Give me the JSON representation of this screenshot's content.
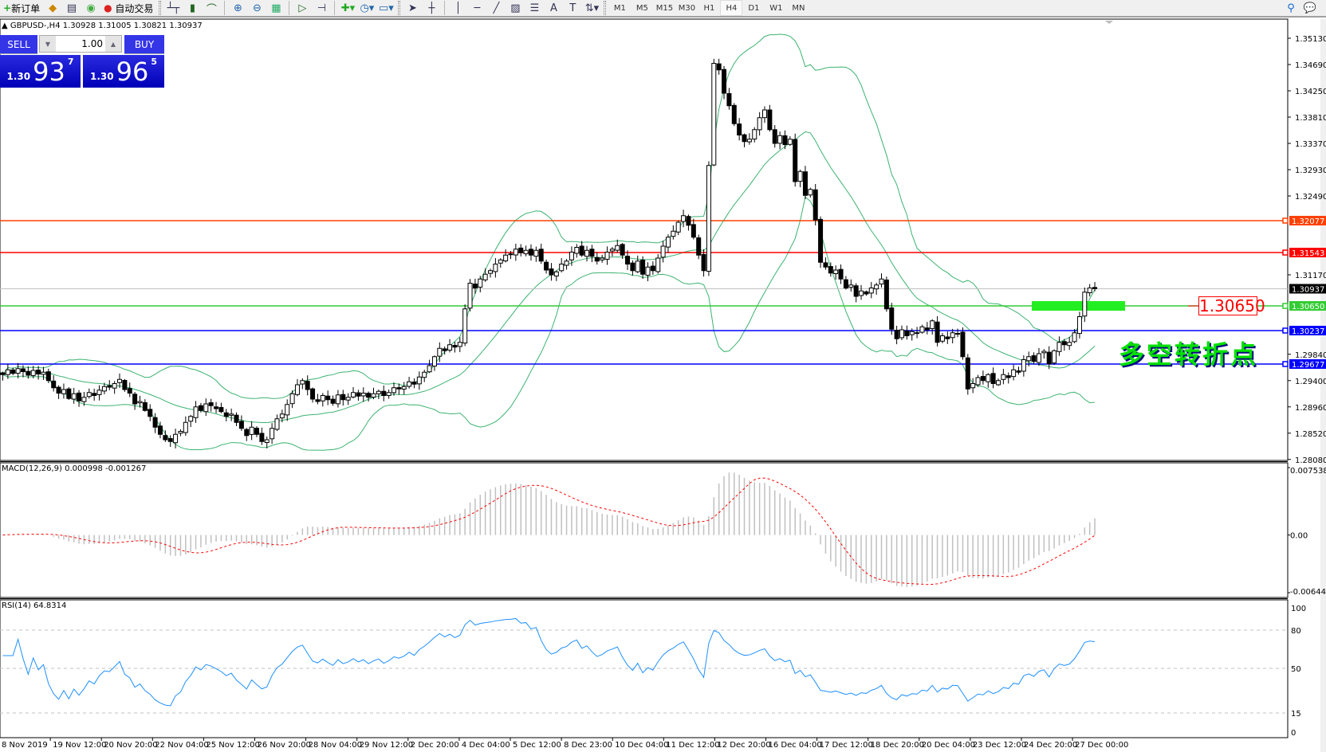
{
  "toolbar": {
    "new_order": "新订单",
    "auto_trading": "自动交易",
    "timeframes": [
      "M1",
      "M5",
      "M15",
      "M30",
      "H1",
      "H4",
      "D1",
      "W1",
      "MN"
    ],
    "active_timeframe": "H4",
    "icons": [
      "market-watch-icon",
      "navigator-icon",
      "signals-icon",
      "bar-chart-icon",
      "candlestick-icon",
      "line-chart-icon",
      "zoom-in-icon",
      "zoom-out-icon",
      "tile-windows-icon",
      "autoscroll-icon",
      "chart-shift-icon",
      "indicators-icon",
      "periods-icon",
      "templates-icon",
      "cursor-icon",
      "crosshair-icon",
      "vertical-line-icon",
      "horizontal-line-icon",
      "trendline-icon",
      "fibonacci-fan-icon",
      "fibonacci-icon",
      "text-icon",
      "text-label-icon",
      "arrows-icon",
      "search-icon",
      "chat-icon"
    ]
  },
  "chart": {
    "title": "GBPUSD-,H4  1.30928 1.31005 1.30821 1.30937",
    "annotation_text": "多空转折点",
    "level_label": "1.30650"
  },
  "trade_panel": {
    "sell_label": "SELL",
    "buy_label": "BUY",
    "lot": "1.00",
    "sell_price": {
      "small": "1.30",
      "big": "93",
      "pip": "7"
    },
    "buy_price": {
      "small": "1.30",
      "big": "96",
      "pip": "5"
    }
  },
  "indicators": {
    "macd_label": "MACD(12,26,9) 0.000998 -0.001267",
    "rsi_label": "RSI(14) 64.8314"
  },
  "colors": {
    "bull": "#ffffff",
    "bear": "#000000",
    "bands": "#3cb371",
    "macd_hist": "#c0c0c0",
    "macd_signal": "#ff0000",
    "rsi": "#1e90ff"
  },
  "chart_data": {
    "type": "candlestick",
    "symbol": "GBPUSD-",
    "timeframe": "H4",
    "ylim": [
      1.2808,
      1.3535
    ],
    "price_ticks": [
      "1.35130",
      "1.34690",
      "1.34250",
      "1.33810",
      "1.33370",
      "1.32930",
      "1.32490",
      "1.31170",
      "1.29840",
      "1.29400",
      "1.28960",
      "1.28520",
      "1.28080"
    ],
    "time_ticks": [
      "8 Nov 2019",
      "19 Nov 12:00",
      "20 Nov 20:00",
      "22 Nov 04:00",
      "25 Nov 12:00",
      "26 Nov 20:00",
      "28 Nov 04:00",
      "29 Nov 12:00",
      "2 Dec 20:00",
      "4 Dec 04:00",
      "5 Dec 12:00",
      "8 Dec 23:00",
      "10 Dec 04:00",
      "11 Dec 12:00",
      "12 Dec 20:00",
      "16 Dec 04:00",
      "17 Dec 12:00",
      "18 Dec 20:00",
      "20 Dec 04:00",
      "23 Dec 12:00",
      "24 Dec 20:00",
      "27 Dec 00:00"
    ],
    "horizontal_levels": [
      {
        "price": "1.32077",
        "color": "#ff4000"
      },
      {
        "price": "1.31543",
        "color": "#ff0000"
      },
      {
        "price": "1.30937",
        "color": "#000000",
        "line": "#c0c0c0"
      },
      {
        "price": "1.30650",
        "color": "#33cc33"
      },
      {
        "price": "1.30237",
        "color": "#0000ff"
      },
      {
        "price": "1.29677",
        "color": "#0000ff"
      }
    ],
    "highlight_zone_price": 1.3065,
    "closes": [
      1.295,
      1.2958,
      1.2952,
      1.296,
      1.2955,
      1.2949,
      1.2957,
      1.2951,
      1.2954,
      1.294,
      1.2928,
      1.2919,
      1.2925,
      1.291,
      1.2918,
      1.2906,
      1.2912,
      1.292,
      1.2915,
      1.2924,
      1.293,
      1.2929,
      1.2935,
      1.2942,
      1.2925,
      1.2919,
      1.2901,
      1.2905,
      1.289,
      1.288,
      1.2862,
      1.285,
      1.2841,
      1.2838,
      1.285,
      1.2855,
      1.287,
      1.288,
      1.2896,
      1.289,
      1.2901,
      1.2898,
      1.2893,
      1.2888,
      1.288,
      1.2884,
      1.287,
      1.286,
      1.2848,
      1.2862,
      1.285,
      1.2838,
      1.2841,
      1.286,
      1.2876,
      1.2884,
      1.29,
      1.2918,
      1.2933,
      1.294,
      1.2925,
      1.2909,
      1.2905,
      1.2915,
      1.2908,
      1.2902,
      1.2916,
      1.2908,
      1.2912,
      1.292,
      1.2914,
      1.2919,
      1.2912,
      1.2918,
      1.2922,
      1.2915,
      1.292,
      1.2928,
      1.2926,
      1.293,
      1.2938,
      1.2934,
      1.2946,
      1.2954,
      1.2965,
      1.298,
      1.2994,
      1.299,
      1.3,
      1.2996,
      1.3004,
      1.306,
      1.3103,
      1.3095,
      1.311,
      1.3118,
      1.3124,
      1.3135,
      1.3142,
      1.315,
      1.3152,
      1.316,
      1.3154,
      1.3158,
      1.315,
      1.3158,
      1.314,
      1.3125,
      1.3117,
      1.3122,
      1.3135,
      1.314,
      1.3155,
      1.3163,
      1.315,
      1.3158,
      1.3148,
      1.314,
      1.3145,
      1.3155,
      1.316,
      1.3166,
      1.315,
      1.3135,
      1.3124,
      1.314,
      1.3118,
      1.313,
      1.3124,
      1.3145,
      1.3165,
      1.318,
      1.319,
      1.3205,
      1.3216,
      1.32,
      1.318,
      1.315,
      1.3124,
      1.33,
      1.3471,
      1.346,
      1.3421,
      1.34,
      1.337,
      1.3351,
      1.334,
      1.3344,
      1.336,
      1.338,
      1.3393,
      1.336,
      1.3337,
      1.335,
      1.3335,
      1.3344,
      1.3273,
      1.329,
      1.325,
      1.326,
      1.3209,
      1.3138,
      1.313,
      1.312,
      1.3125,
      1.311,
      1.3095,
      1.31,
      1.3081,
      1.309,
      1.3085,
      1.3095,
      1.31,
      1.311,
      1.306,
      1.3026,
      1.301,
      1.3025,
      1.3015,
      1.3022,
      1.3019,
      1.303,
      1.3025,
      1.304,
      1.3004,
      1.3015,
      1.301,
      1.302,
      1.3019,
      1.298,
      1.2926,
      1.2935,
      1.2945,
      1.294,
      1.295,
      1.2935,
      1.294,
      1.295,
      1.2945,
      1.2958,
      1.2954,
      1.2975,
      1.298,
      1.2972,
      1.2985,
      1.2989,
      1.2968,
      1.299,
      1.3004,
      1.3,
      1.3004,
      1.302,
      1.3047,
      1.3088,
      1.3095,
      1.30937
    ],
    "macd": {
      "params": "12,26,9",
      "ylim": [
        -0.006446,
        0.007538
      ],
      "ticks": [
        "0.007538",
        "0.00",
        "-0.006446"
      ]
    },
    "rsi": {
      "period": 14,
      "ylim": [
        0,
        100
      ],
      "ticks": [
        "100",
        "80",
        "50",
        "15",
        "0"
      ],
      "levels": [
        80,
        50,
        15
      ]
    }
  }
}
